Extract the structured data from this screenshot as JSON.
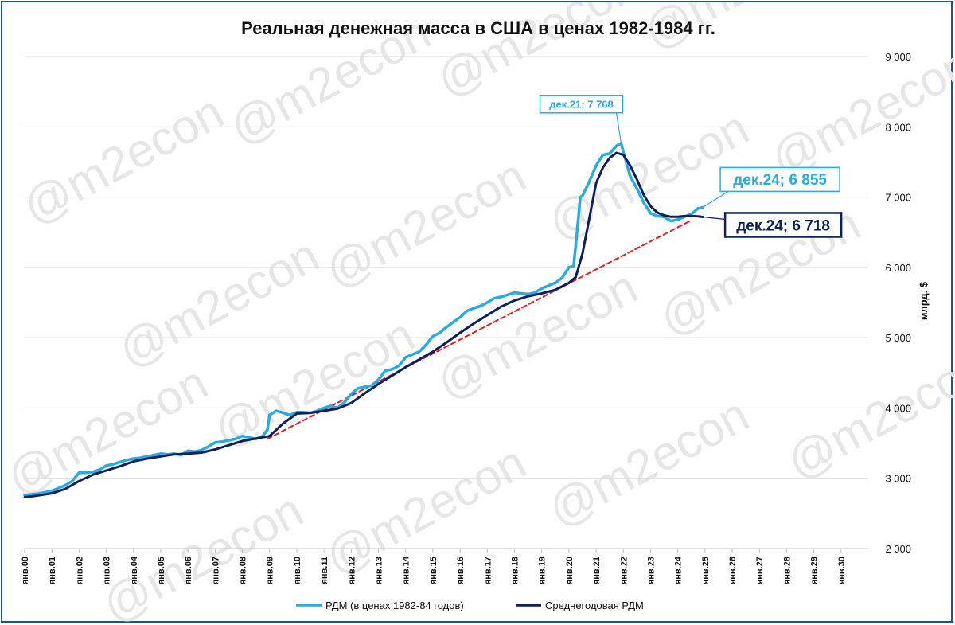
{
  "chart_data": {
    "type": "line",
    "title": "Реальная денежная масса в США в ценах 1982-1984 гг.",
    "ylabel": "млрд. $",
    "ylim": [
      2000,
      9000
    ],
    "yticks": [
      "2 000",
      "3 000",
      "4 000",
      "5 000",
      "6 000",
      "7 000",
      "8 000",
      "9 000"
    ],
    "xlim": [
      2000,
      2031
    ],
    "xticks": [
      "янв.00",
      "янв.01",
      "янв.02",
      "янв.03",
      "янв.04",
      "янв.05",
      "янв.06",
      "янв.07",
      "янв.08",
      "янв.09",
      "янв.10",
      "янв.11",
      "янв.12",
      "янв.13",
      "янв.14",
      "янв.15",
      "янв.16",
      "янв.17",
      "янв.18",
      "янв.19",
      "янв.20",
      "янв.21",
      "янв.22",
      "янв.23",
      "янв.24",
      "янв.25",
      "янв.26",
      "янв.27",
      "янв.28",
      "янв.29",
      "янв.30"
    ],
    "grid": true,
    "legend_position": "bottom",
    "watermark": "@m2econ",
    "series": [
      {
        "name": "РДМ (в ценах 1982-84 годов)",
        "color": "#29aae1",
        "x": [
          2000.0,
          2000.25,
          2000.5,
          2000.75,
          2001.0,
          2001.25,
          2001.5,
          2001.75,
          2002.0,
          2002.25,
          2002.5,
          2002.75,
          2003.0,
          2003.25,
          2003.5,
          2003.75,
          2004.0,
          2004.25,
          2004.5,
          2004.75,
          2005.0,
          2005.25,
          2005.5,
          2005.75,
          2006.0,
          2006.25,
          2006.5,
          2006.75,
          2007.0,
          2007.25,
          2007.5,
          2007.75,
          2008.0,
          2008.25,
          2008.5,
          2008.75,
          2008.92,
          2009.0,
          2009.25,
          2009.5,
          2009.75,
          2010.0,
          2010.25,
          2010.5,
          2010.75,
          2011.0,
          2011.25,
          2011.5,
          2011.75,
          2012.0,
          2012.25,
          2012.5,
          2012.75,
          2013.0,
          2013.25,
          2013.5,
          2013.75,
          2014.0,
          2014.25,
          2014.5,
          2014.75,
          2015.0,
          2015.25,
          2015.5,
          2015.75,
          2016.0,
          2016.25,
          2016.5,
          2016.75,
          2017.0,
          2017.25,
          2017.5,
          2017.75,
          2018.0,
          2018.25,
          2018.5,
          2018.75,
          2019.0,
          2019.25,
          2019.5,
          2019.75,
          2020.0,
          2020.17,
          2020.25,
          2020.42,
          2020.5,
          2020.75,
          2021.0,
          2021.25,
          2021.5,
          2021.75,
          2021.92,
          2022.0,
          2022.25,
          2022.5,
          2022.75,
          2023.0,
          2023.25,
          2023.5,
          2023.75,
          2024.0,
          2024.25,
          2024.5,
          2024.75,
          2024.92
        ],
        "values": [
          2760,
          2770,
          2780,
          2800,
          2820,
          2860,
          2900,
          2960,
          3080,
          3080,
          3090,
          3120,
          3180,
          3200,
          3230,
          3260,
          3280,
          3290,
          3310,
          3330,
          3350,
          3340,
          3350,
          3330,
          3390,
          3380,
          3400,
          3450,
          3510,
          3520,
          3540,
          3560,
          3600,
          3580,
          3560,
          3600,
          3690,
          3900,
          3960,
          3930,
          3900,
          3940,
          3940,
          3930,
          3960,
          4000,
          4030,
          4000,
          4080,
          4200,
          4280,
          4300,
          4320,
          4400,
          4530,
          4550,
          4600,
          4720,
          4760,
          4800,
          4900,
          5020,
          5070,
          5150,
          5220,
          5290,
          5380,
          5420,
          5450,
          5500,
          5560,
          5580,
          5610,
          5640,
          5630,
          5620,
          5640,
          5700,
          5740,
          5780,
          5850,
          6000,
          6020,
          6300,
          7000,
          7020,
          7220,
          7450,
          7600,
          7620,
          7730,
          7768,
          7640,
          7300,
          7120,
          6920,
          6770,
          6730,
          6720,
          6660,
          6680,
          6720,
          6760,
          6840,
          6855
        ]
      },
      {
        "name": "Среднегодовая РДМ",
        "color": "#0d1f5c",
        "x": [
          2000.0,
          2000.5,
          2001.0,
          2001.5,
          2002.0,
          2002.5,
          2003.0,
          2003.5,
          2004.0,
          2004.5,
          2005.0,
          2005.5,
          2006.0,
          2006.5,
          2007.0,
          2007.5,
          2008.0,
          2008.5,
          2009.0,
          2009.5,
          2010.0,
          2010.5,
          2011.0,
          2011.5,
          2012.0,
          2012.5,
          2013.0,
          2013.5,
          2014.0,
          2014.5,
          2015.0,
          2015.5,
          2016.0,
          2016.5,
          2017.0,
          2017.5,
          2018.0,
          2018.5,
          2019.0,
          2019.5,
          2020.0,
          2020.25,
          2020.5,
          2020.75,
          2021.0,
          2021.25,
          2021.5,
          2021.75,
          2022.0,
          2022.25,
          2022.5,
          2022.75,
          2023.0,
          2023.25,
          2023.5,
          2023.75,
          2024.0,
          2024.25,
          2024.5,
          2024.75,
          2024.92
        ],
        "values": [
          2730,
          2755,
          2785,
          2850,
          2960,
          3050,
          3110,
          3170,
          3240,
          3280,
          3310,
          3340,
          3350,
          3365,
          3410,
          3470,
          3530,
          3565,
          3600,
          3780,
          3920,
          3930,
          3960,
          3990,
          4070,
          4210,
          4340,
          4460,
          4580,
          4690,
          4800,
          4930,
          5070,
          5200,
          5320,
          5440,
          5530,
          5590,
          5630,
          5680,
          5780,
          5860,
          6200,
          6700,
          7200,
          7420,
          7560,
          7630,
          7600,
          7450,
          7250,
          7030,
          6870,
          6780,
          6740,
          6720,
          6720,
          6730,
          6730,
          6725,
          6718
        ]
      },
      {
        "name": "trend",
        "color": "#e02020",
        "x": [
          2008.92,
          2024.45
        ],
        "values": [
          3560,
          6660
        ]
      }
    ],
    "annotations": [
      {
        "text": "дек.21; 7 768",
        "x": 2021.92,
        "y": 7768,
        "color": "#29aae1"
      },
      {
        "text": "дек.24; 6 855",
        "x": 2024.92,
        "y": 6855,
        "color": "#29aae1"
      },
      {
        "text": "дек.24; 6 718",
        "x": 2024.92,
        "y": 6718,
        "color": "#0d1f5c"
      }
    ]
  }
}
